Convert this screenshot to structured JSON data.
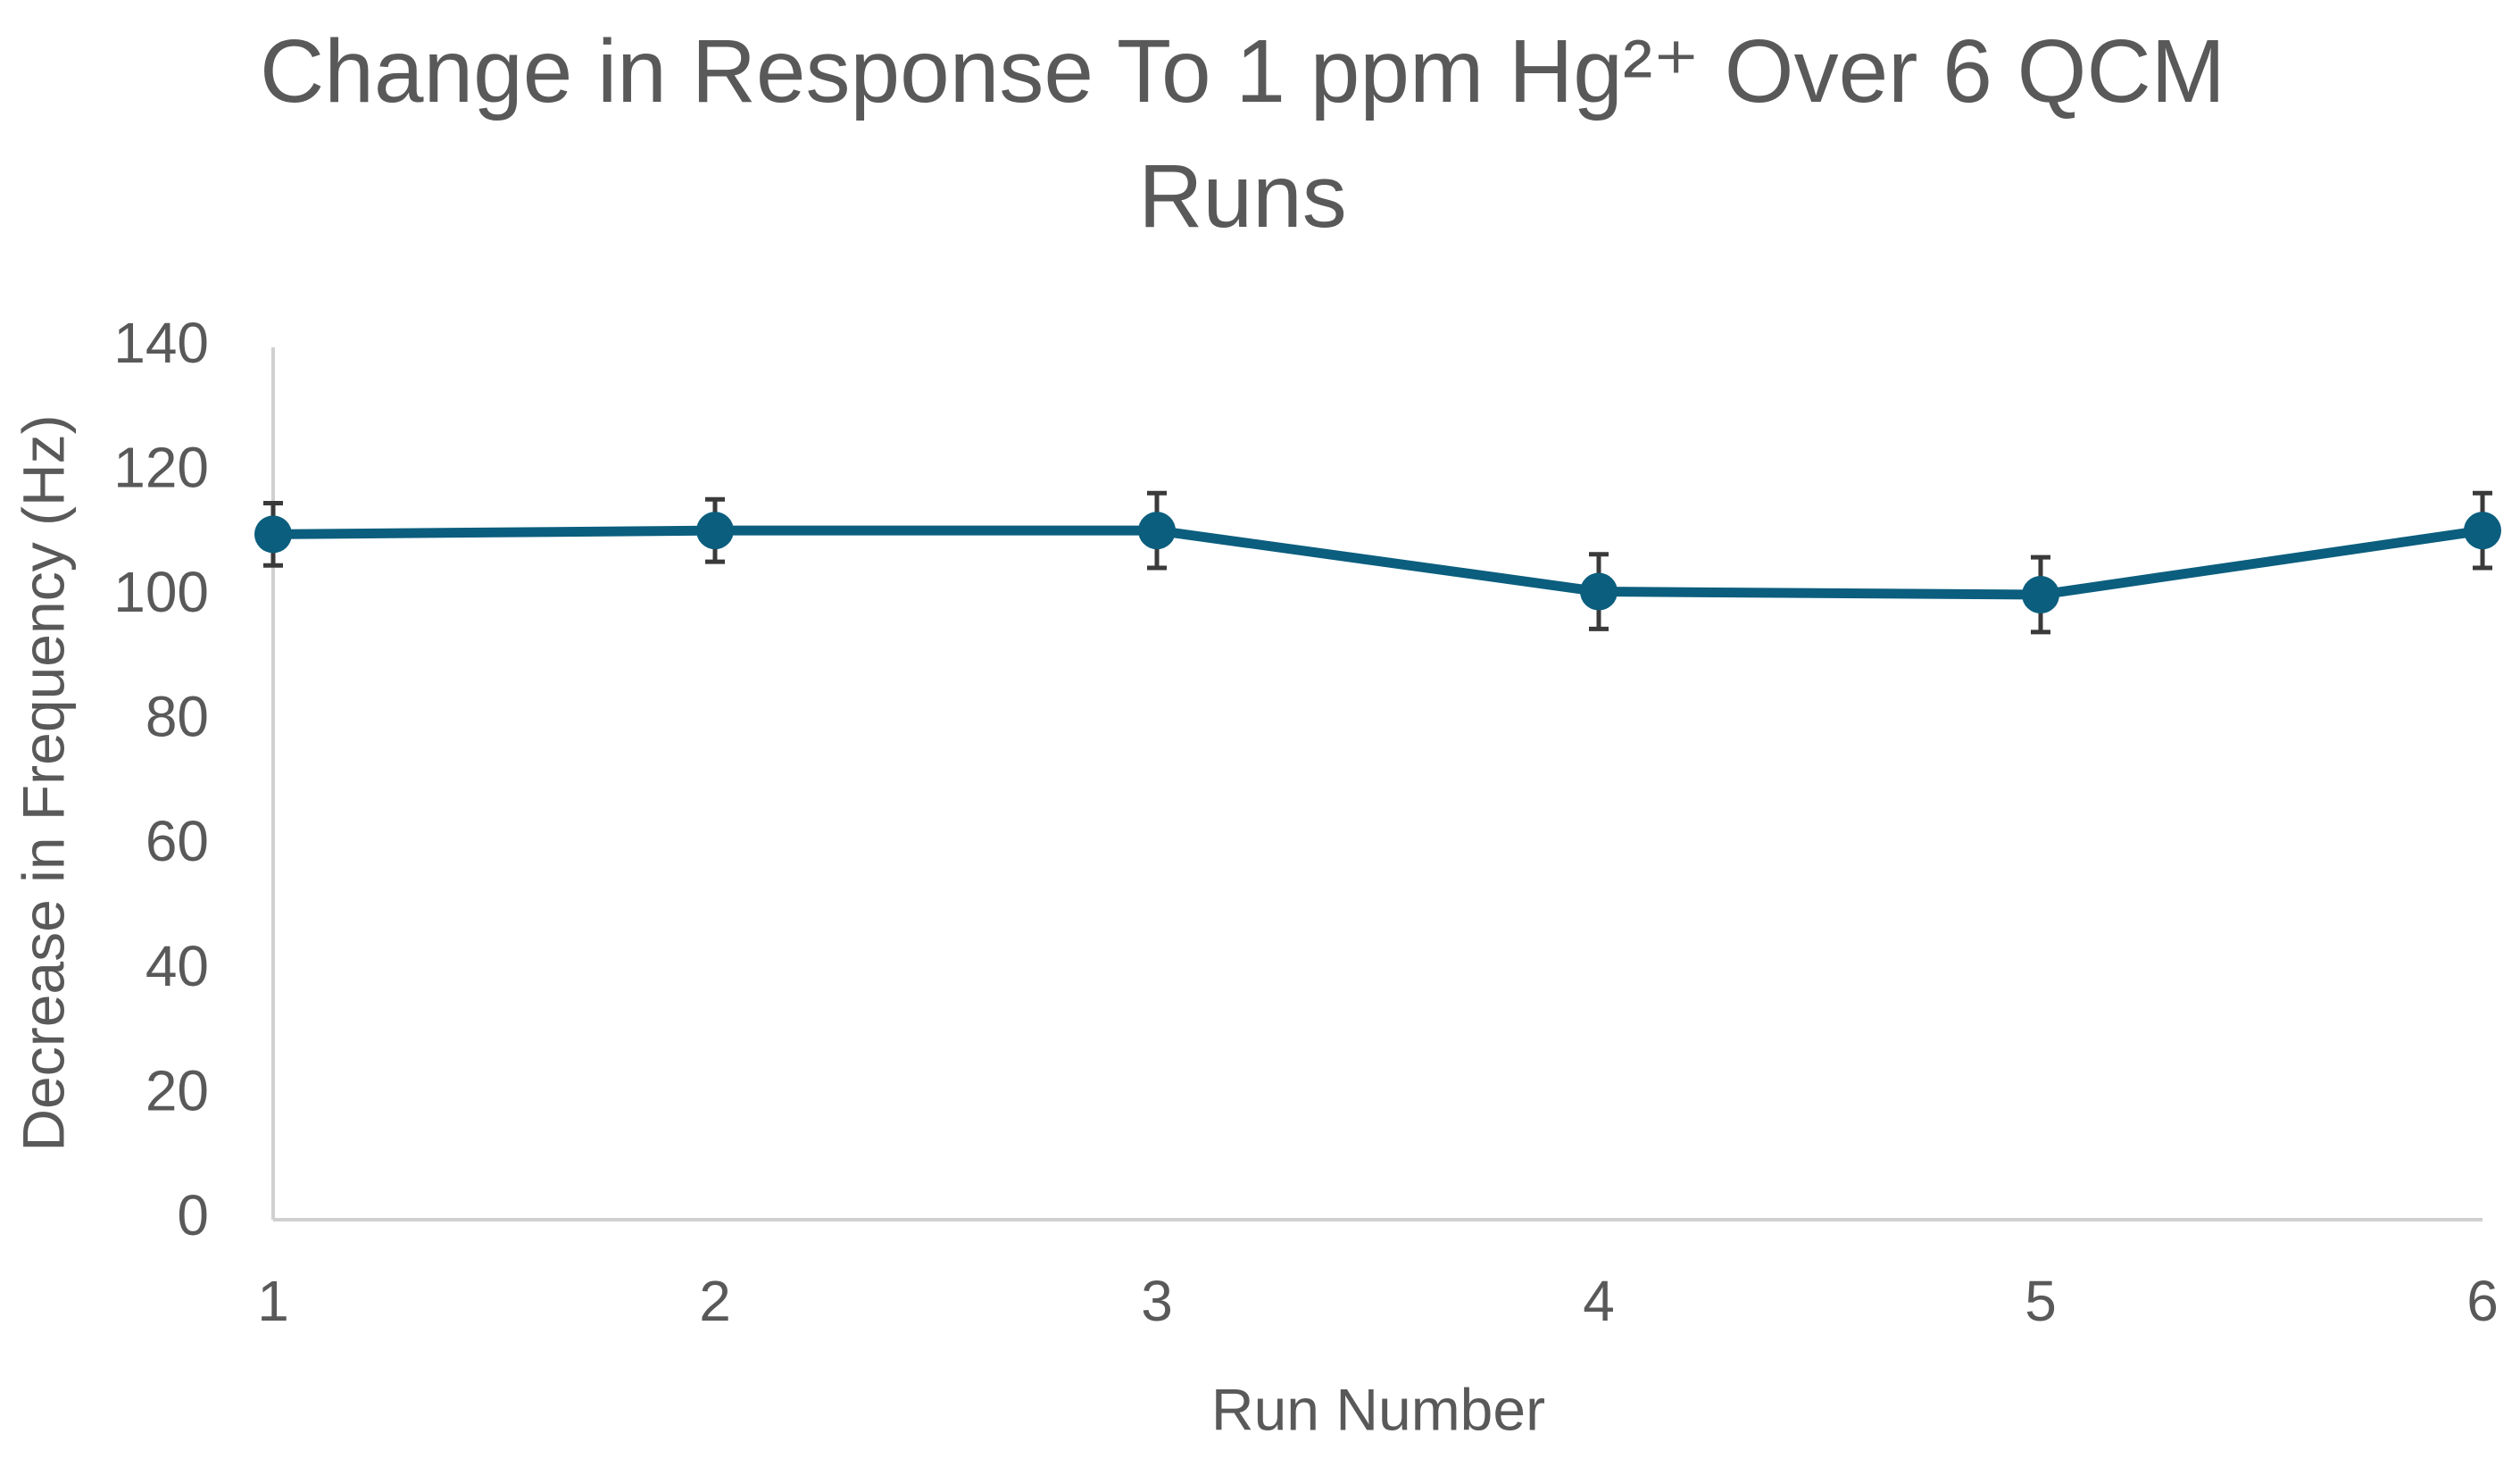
{
  "chart_data": {
    "type": "line",
    "title": "Change in Response To 1 ppm Hg²⁺ Over 6 QCM Runs",
    "x_label": "Run Number",
    "y_label": "Decrease in Frequency (Hz)",
    "x": [
      1,
      2,
      3,
      4,
      5,
      6
    ],
    "series": [
      {
        "name": "Response",
        "color": "#0b5e7e",
        "values": [
          110,
          110.6,
          110.6,
          100.8,
          100.3,
          110.6
        ],
        "errors": [
          5,
          5,
          6,
          6,
          6,
          6
        ]
      }
    ],
    "xlim": [
      1,
      6
    ],
    "xticks": [
      1,
      2,
      3,
      4,
      5,
      6
    ],
    "ylim": [
      0,
      140
    ],
    "yticks": [
      0,
      20,
      40,
      60,
      80,
      100,
      120,
      140
    ],
    "grid": false
  }
}
